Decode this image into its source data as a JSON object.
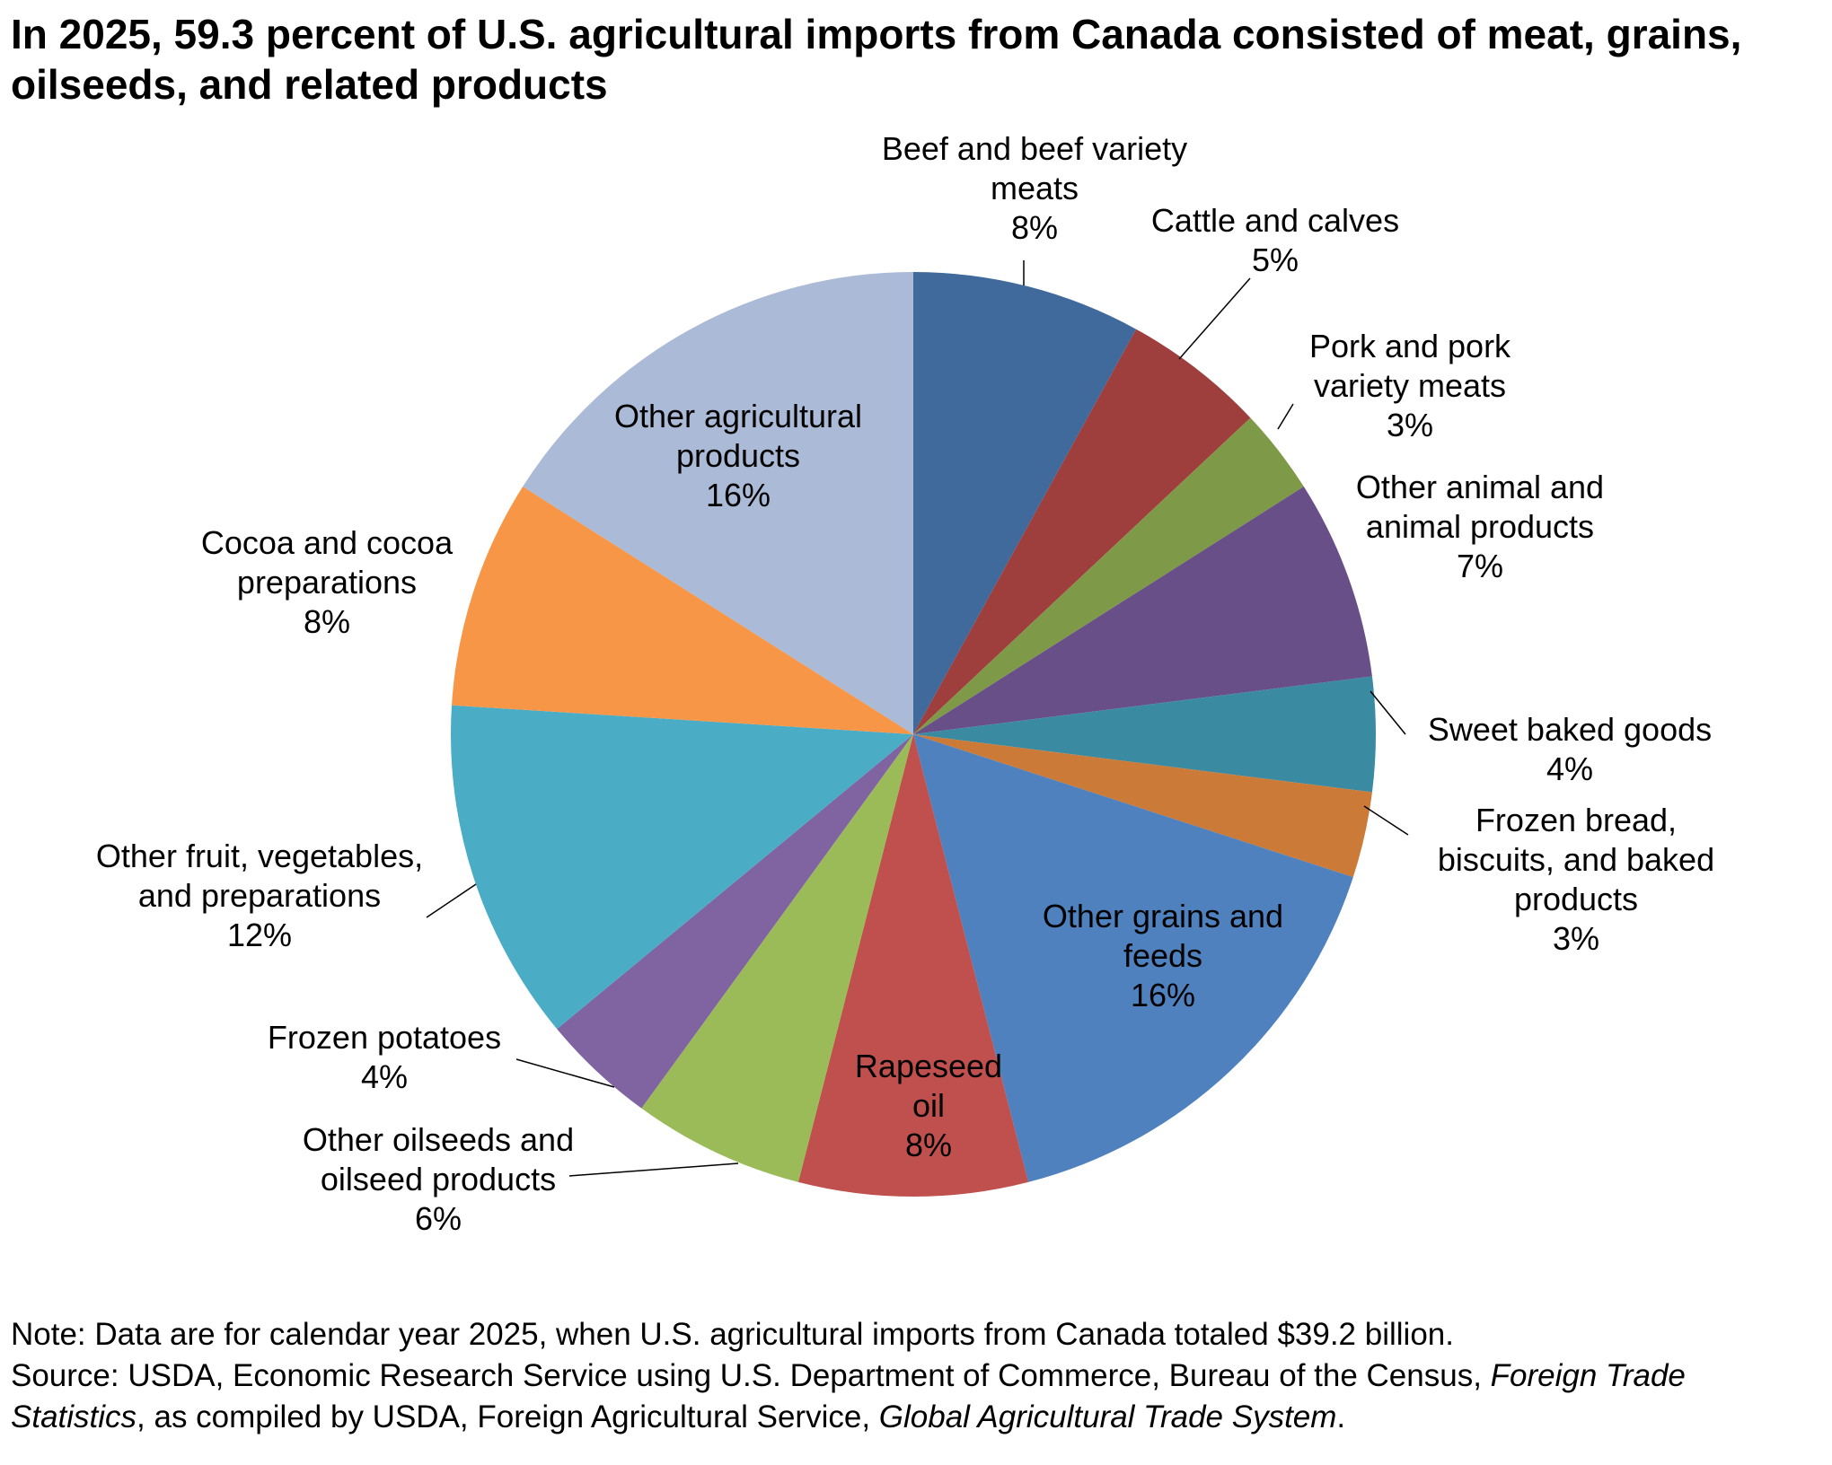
{
  "chart_data": {
    "type": "pie",
    "title": "In 2025, 59.3 percent of U.S. agricultural imports from Canada consisted of meat, grains, oilseeds, and related products",
    "start_angle": "12 o'clock",
    "direction": "clockwise",
    "slices": [
      {
        "label": [
          "Beef and beef variety",
          "meats"
        ],
        "value": 8,
        "value_label": "8%",
        "color": "#3F6A9B"
      },
      {
        "label": [
          "Cattle and calves"
        ],
        "value": 5,
        "value_label": "5%",
        "color": "#9E3F3E"
      },
      {
        "label": [
          "Pork and pork",
          "variety meats"
        ],
        "value": 3,
        "value_label": "3%",
        "color": "#7E9A48"
      },
      {
        "label": [
          "Other animal and",
          "animal products"
        ],
        "value": 7,
        "value_label": "7%",
        "color": "#684F87"
      },
      {
        "label": [
          "Sweet baked goods"
        ],
        "value": 4,
        "value_label": "4%",
        "color": "#3A8BA2"
      },
      {
        "label": [
          "Frozen bread,",
          "biscuits, and baked",
          "products"
        ],
        "value": 3,
        "value_label": "3%",
        "color": "#CB7A38"
      },
      {
        "label": [
          "Other grains and",
          "feeds"
        ],
        "value": 16,
        "value_label": "16%",
        "color": "#4E81BD"
      },
      {
        "label": [
          "Rapeseed",
          "oil"
        ],
        "value": 8,
        "value_label": "8%",
        "color": "#C0504D"
      },
      {
        "label": [
          "Other oilseeds and",
          "oilseed products"
        ],
        "value": 6,
        "value_label": "6%",
        "color": "#9BBB59"
      },
      {
        "label": [
          "Frozen potatoes"
        ],
        "value": 4,
        "value_label": "4%",
        "color": "#8064A2"
      },
      {
        "label": [
          "Other fruit, vegetables,",
          "and preparations"
        ],
        "value": 12,
        "value_label": "12%",
        "color": "#4BACC6"
      },
      {
        "label": [
          "Cocoa and cocoa",
          "preparations"
        ],
        "value": 8,
        "value_label": "8%",
        "color": "#F79646"
      },
      {
        "label": [
          "Other agricultural",
          "products"
        ],
        "value": 16,
        "value_label": "16%",
        "color": "#AABAD7"
      }
    ]
  },
  "footer": {
    "note": "Note: Data are for calendar year 2025, when U.S. agricultural imports from Canada totaled $39.2 billion.",
    "source_prefix": "Source: USDA, Economic Research Service using U.S. Department of Commerce, Bureau of the Census, ",
    "source_italic_1": "Foreign Trade Statistics",
    "source_middle": ", as compiled by USDA, Foreign Agricultural Service, ",
    "source_italic_2": "Global Agricultural Trade System",
    "source_end": "."
  }
}
